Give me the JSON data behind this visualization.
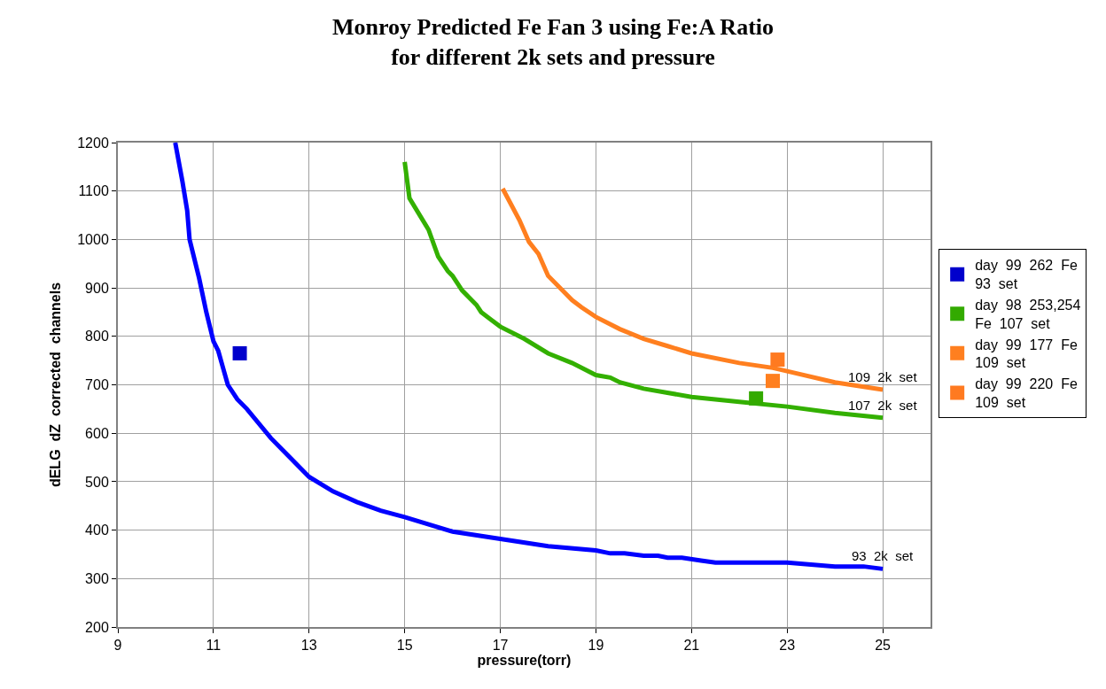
{
  "chart_data": {
    "type": "line",
    "title": "Monroy Predicted Fe Fan 3 using Fe:A Ratio\nfor different 2k sets and pressure",
    "xlabel": "pressure(torr)",
    "ylabel": "dELG  dZ  corrected  channels",
    "xlim": [
      9,
      26
    ],
    "xticks": [
      9,
      11,
      13,
      15,
      17,
      19,
      21,
      23,
      25
    ],
    "ylim": [
      200,
      1200
    ],
    "yticks": [
      200,
      300,
      400,
      500,
      600,
      700,
      800,
      900,
      1000,
      1100,
      1200
    ],
    "grid": true,
    "legend": "right",
    "line_style": "solid",
    "series": [
      {
        "color": "#0000ff",
        "marker": "none",
        "x": [
          10.2,
          10.35,
          10.45,
          10.5,
          10.7,
          10.85,
          11,
          11.1,
          11.2,
          11.3,
          11.5,
          11.7,
          12.2,
          13,
          13.5,
          14,
          14.5,
          15,
          16,
          17,
          18,
          19,
          19.3,
          19.6,
          20,
          20.3,
          20.5,
          20.8,
          21.2,
          21.5,
          22.5,
          23,
          24,
          24.6,
          25
        ],
        "values": [
          1200,
          1120,
          1060,
          1000,
          920,
          850,
          790,
          770,
          735,
          700,
          670,
          650,
          590,
          510,
          480,
          458,
          440,
          427,
          397,
          382,
          367,
          358,
          352,
          352,
          347,
          347,
          343,
          343,
          337,
          333,
          333,
          333,
          325,
          325,
          320
        ]
      },
      {
        "color": "#33b000",
        "marker": "none",
        "x": [
          15,
          15.1,
          15.5,
          15.7,
          15.9,
          16,
          16.2,
          16.5,
          16.6,
          16.8,
          17,
          17.5,
          18,
          18.5,
          19,
          19.3,
          19.5,
          20,
          21,
          22,
          23,
          24,
          25
        ],
        "values": [
          1160,
          1085,
          1020,
          965,
          935,
          925,
          895,
          865,
          850,
          835,
          820,
          795,
          765,
          745,
          720,
          715,
          705,
          692,
          675,
          665,
          655,
          642,
          632
        ]
      },
      {
        "color": "#ff7f1f",
        "marker": "none",
        "x": [
          17.05,
          17.4,
          17.6,
          17.8,
          18,
          18.5,
          18.7,
          19,
          19.5,
          20,
          20.5,
          21,
          22,
          22.7,
          23,
          24,
          25
        ],
        "values": [
          1105,
          1040,
          995,
          970,
          925,
          875,
          860,
          840,
          815,
          795,
          780,
          765,
          745,
          735,
          728,
          705,
          690
        ]
      },
      {
        "type": "scatter",
        "name": "day  99  262  Fe\n93  set",
        "color": "#0000cc",
        "marker": "square",
        "x": [
          11.55
        ],
        "values": [
          765
        ]
      },
      {
        "type": "scatter",
        "name": "day  98  253,254\nFe  107  set",
        "color": "#33aa00",
        "marker": "square",
        "x": [
          22.35
        ],
        "values": [
          672
        ]
      },
      {
        "type": "scatter",
        "name": "day  99  177  Fe\n109  set",
        "color": "#ff7f1f",
        "marker": "square",
        "x": [
          22.7
        ],
        "values": [
          708
        ]
      },
      {
        "type": "scatter",
        "name": "day  99  220  Fe\n109  set",
        "color": "#ff7a20",
        "marker": "square",
        "x": [
          22.8
        ],
        "values": [
          752
        ]
      }
    ],
    "annotations": [
      "109  2k  set",
      "107  2k  set",
      "93  2k  set"
    ]
  }
}
